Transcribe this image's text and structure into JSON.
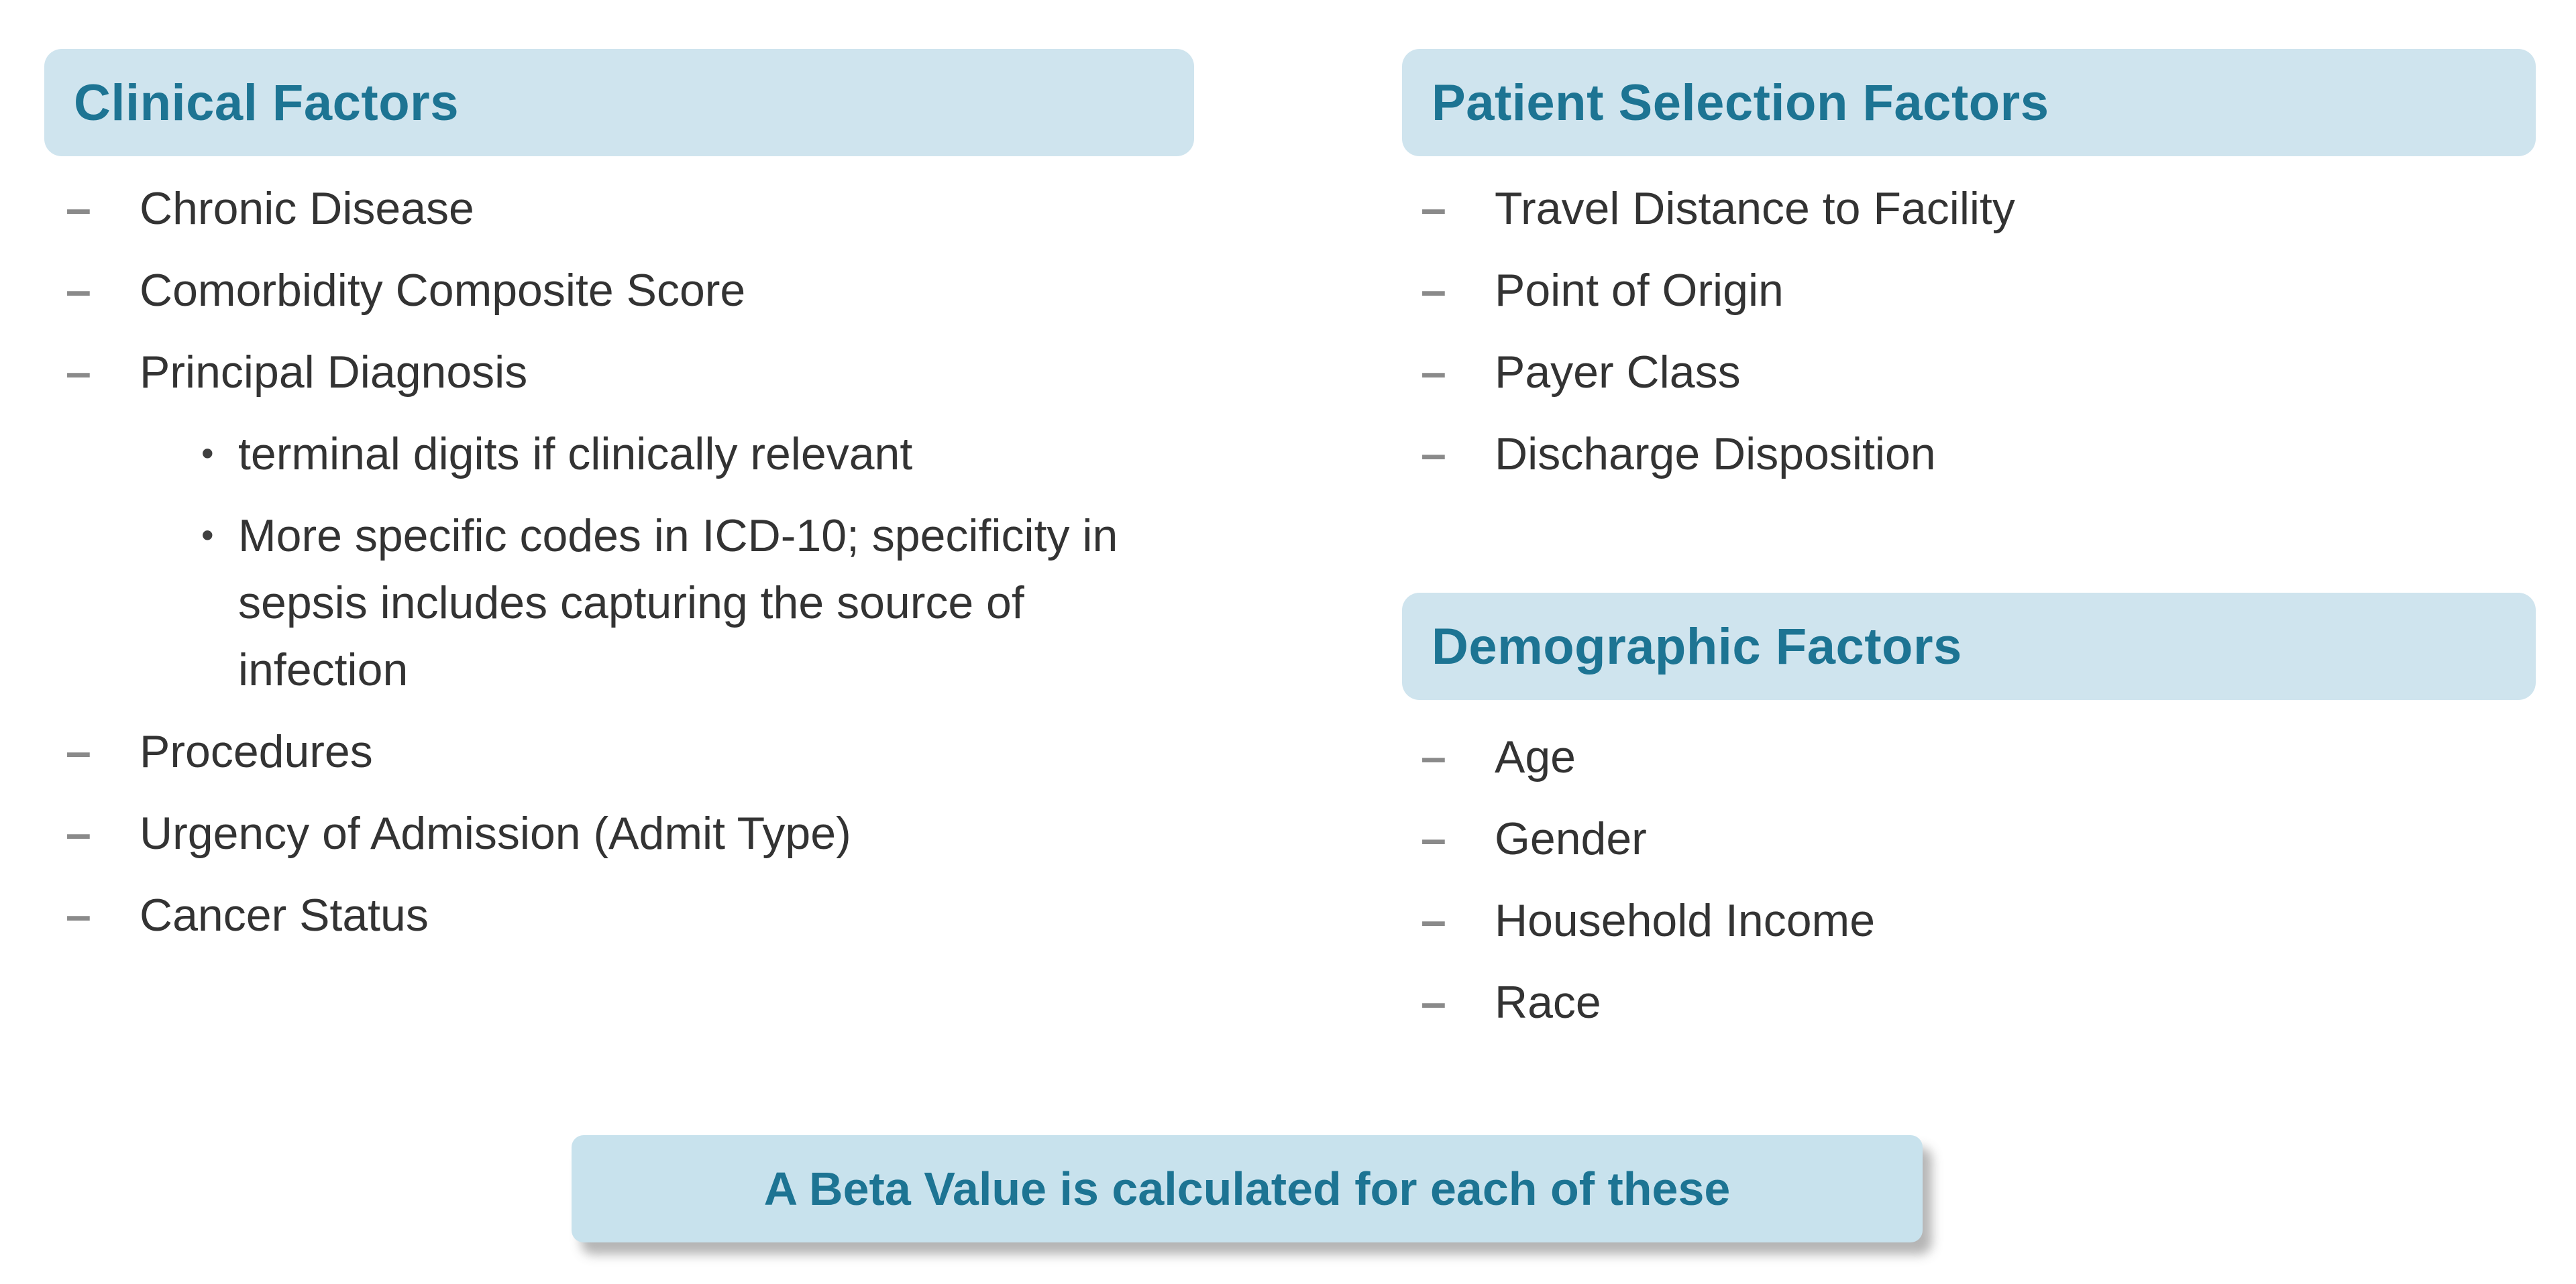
{
  "glyphs": {
    "dash": "–",
    "dot": "•"
  },
  "colors": {
    "page_bg": "#ffffff",
    "header_bg": "#cfe4ee",
    "header_text": "#1d7493",
    "body_text": "#333333",
    "bullet": "#8a8a8a",
    "banner_bg": "#c8e2ed",
    "banner_text": "#1d7493"
  },
  "sections": {
    "clinical": {
      "title": "Clinical Factors",
      "items": [
        "Chronic Disease",
        "Comorbidity Composite Score",
        "Principal Diagnosis",
        "terminal digits if clinically relevant",
        "More specific codes in ICD-10; specificity in\nsepsis includes capturing the source of\ninfection",
        "Procedures",
        "Urgency of Admission (Admit Type)",
        "Cancer Status"
      ]
    },
    "patient_selection": {
      "title": "Patient Selection Factors",
      "items": [
        "Travel Distance to Facility",
        "Point of Origin",
        "Payer Class",
        "Discharge Disposition"
      ]
    },
    "demographic": {
      "title": "Demographic Factors",
      "items": [
        "Age",
        "Gender",
        "Household Income",
        "Race"
      ]
    }
  },
  "banner": {
    "text": "A Beta Value is calculated for each of these"
  }
}
